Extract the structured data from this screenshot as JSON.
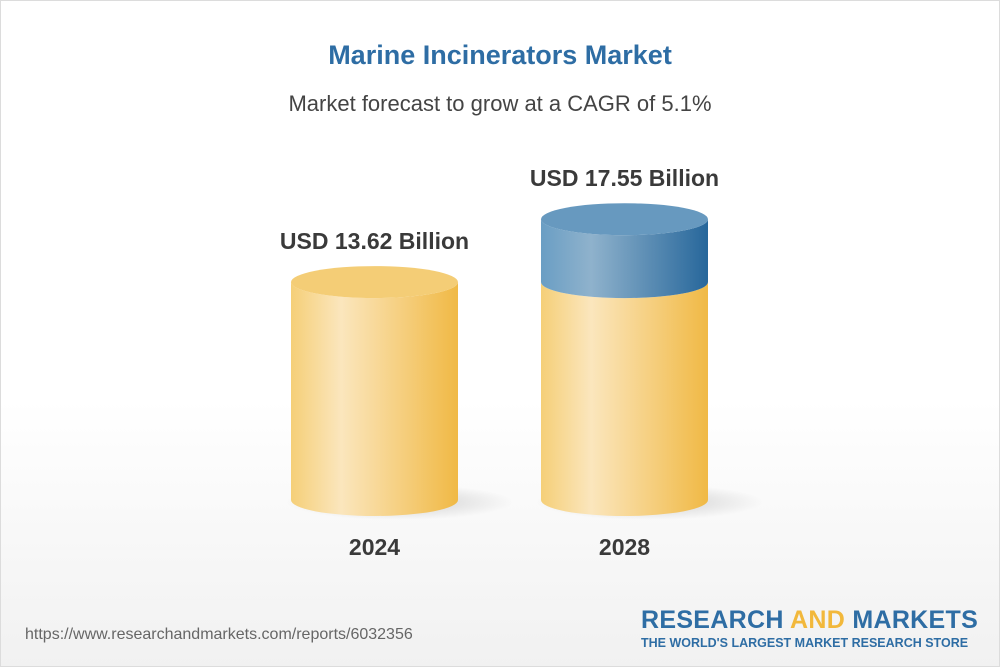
{
  "title": "Marine Incinerators Market",
  "subtitle": "Market forecast to grow at a CAGR of 5.1%",
  "chart_data": {
    "type": "bar",
    "style": "3d-cylinder",
    "categories": [
      "2024",
      "2028"
    ],
    "values": [
      13.62,
      17.55
    ],
    "data_labels": [
      "USD 13.62 Billion",
      "USD 17.55 Billion"
    ],
    "unit": "USD Billion",
    "cagr": "5.1%",
    "colors": {
      "base": "#f2c15a",
      "growth": "#2e6da4"
    },
    "grid": false
  },
  "footer": {
    "url": "https://www.researchandmarkets.com/reports/6032356",
    "logo_line1_a": "RESEARCH ",
    "logo_line1_b": "AND",
    "logo_line1_c": " MARKETS",
    "logo_line2": "THE WORLD'S LARGEST MARKET RESEARCH STORE"
  }
}
